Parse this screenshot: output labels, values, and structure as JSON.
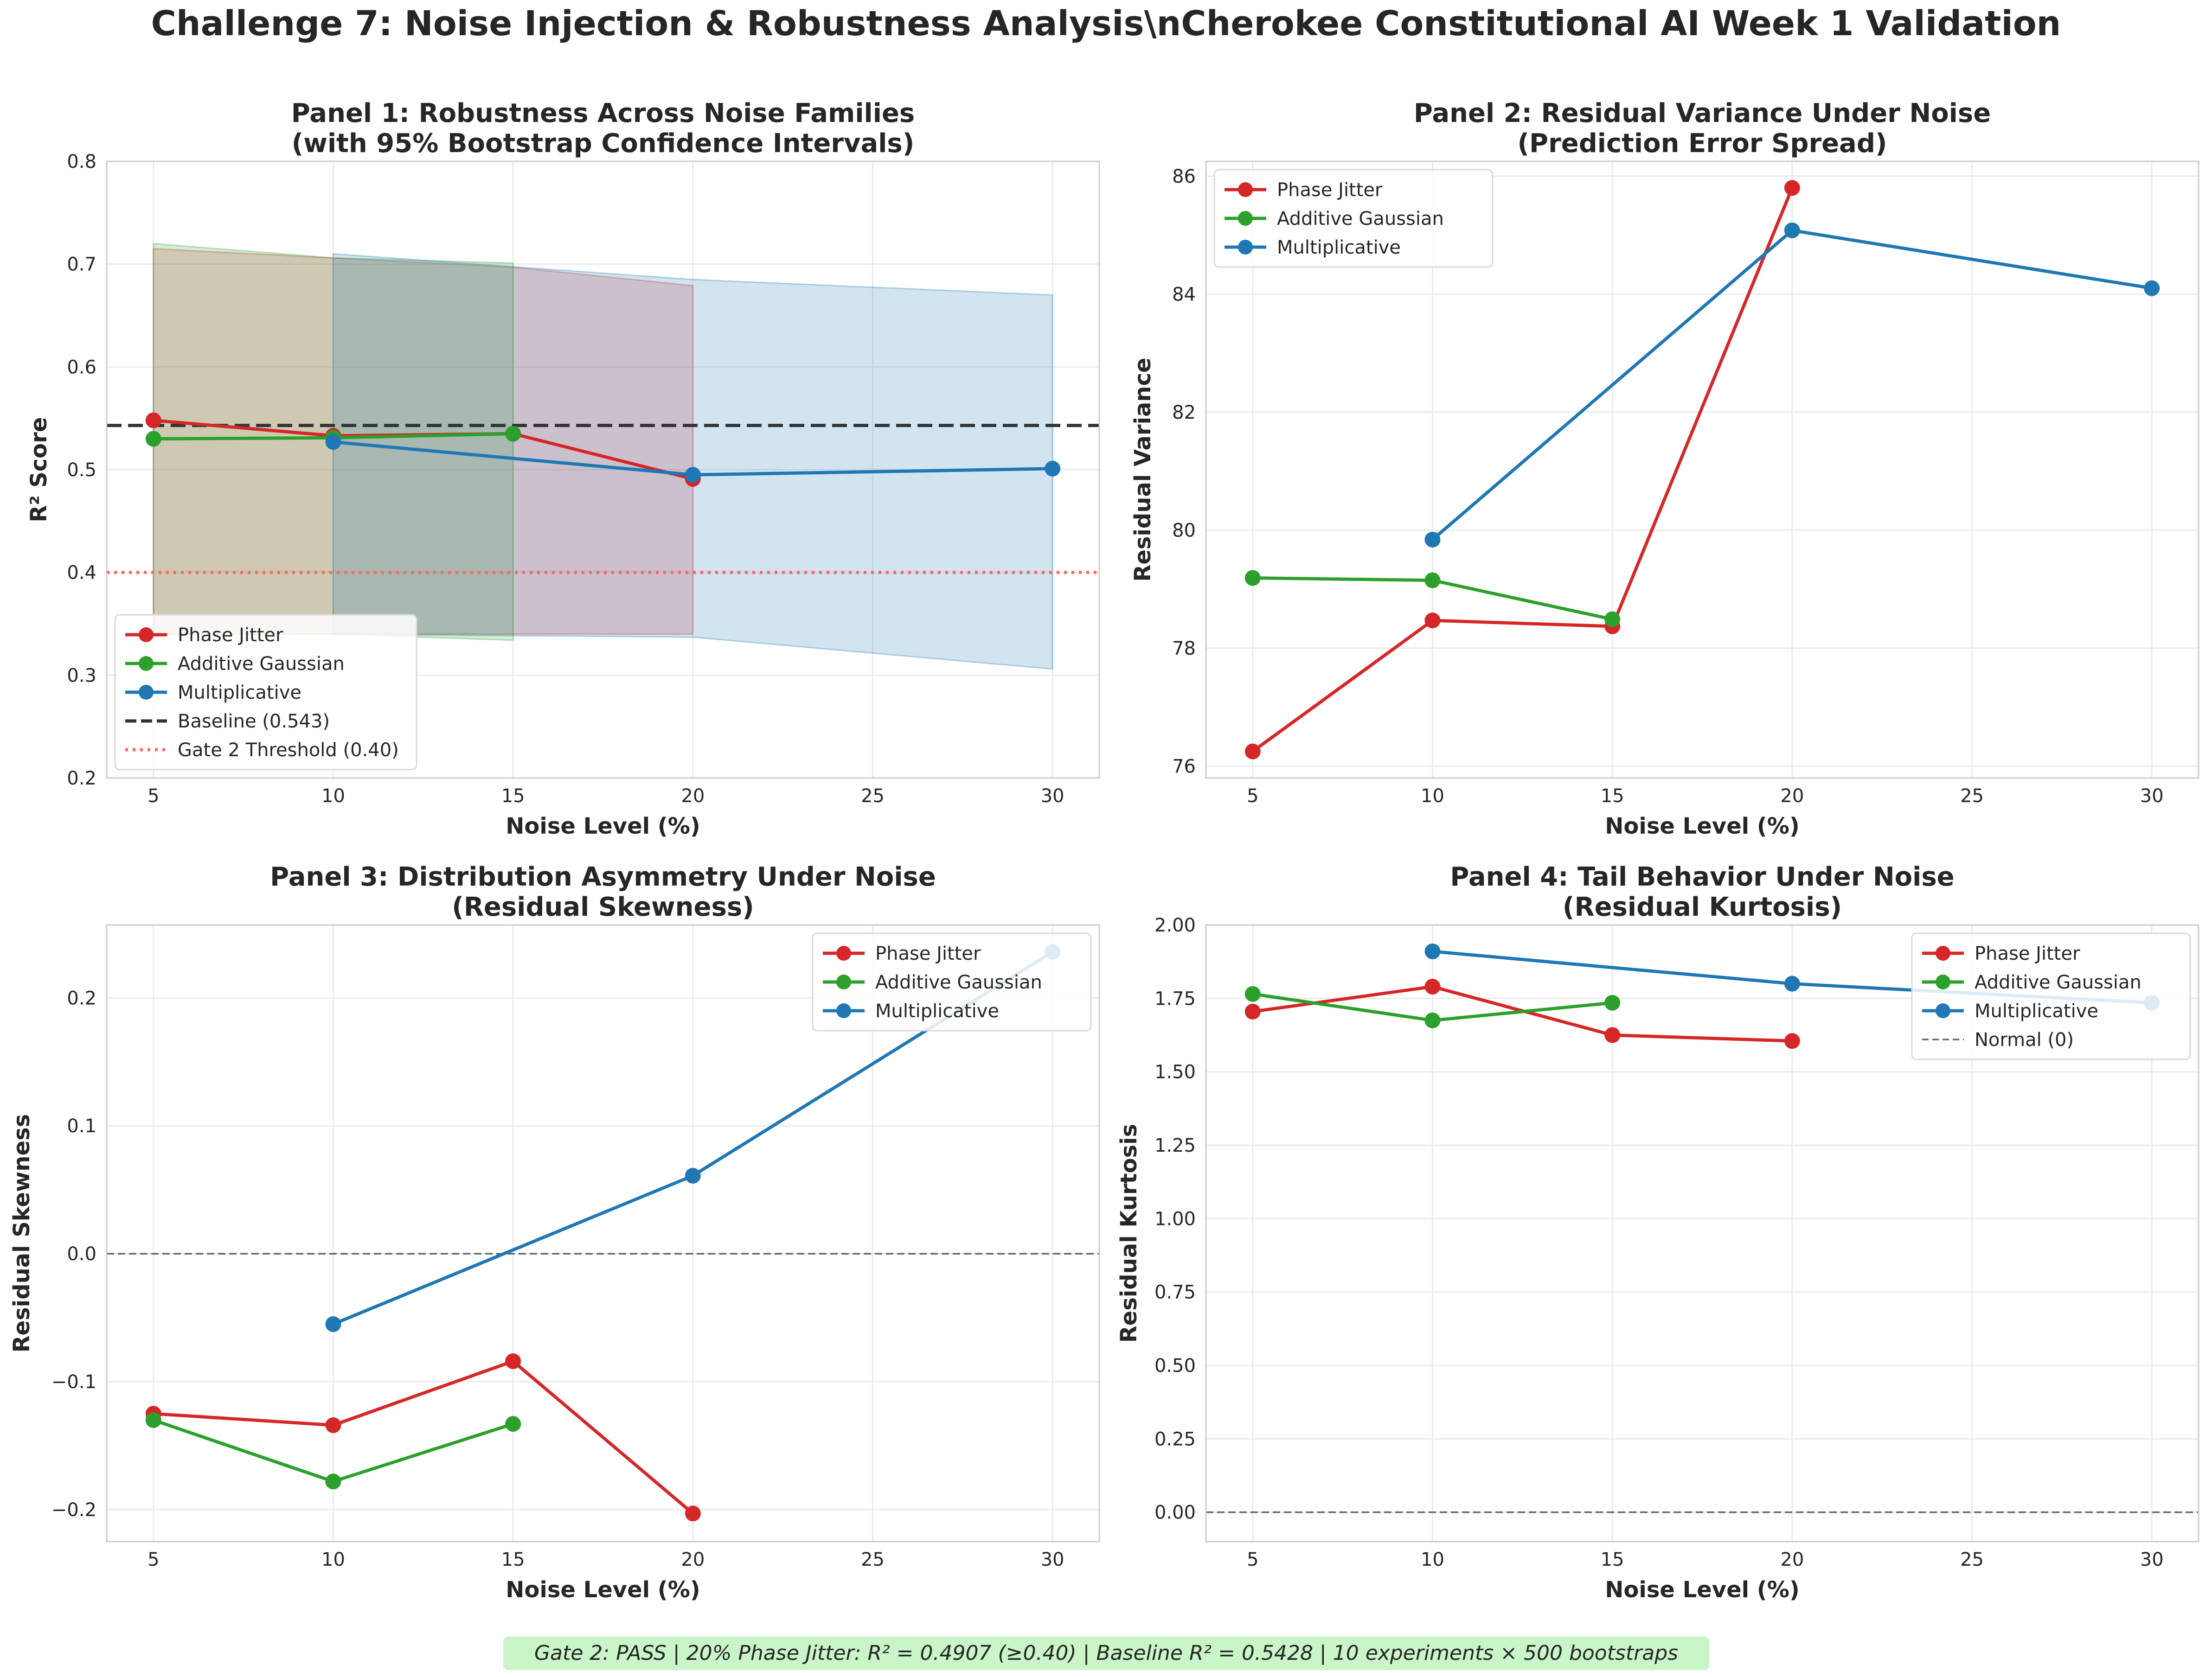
{
  "figure_title": "Challenge 7: Noise Injection & Robustness Analysis\\nCherokee Constitutional AI Week 1 Validation",
  "footer_note": "Gate 2: PASS | 20% Phase Jitter: R² = 0.4907 (≥0.40) | Baseline R² = 0.5428 | 10 experiments × 500 bootstraps",
  "colors": {
    "phase_jitter": "#d62728",
    "additive_gaussian": "#2ca02c",
    "multiplicative": "#1f77b4"
  },
  "chart_data": [
    {
      "type": "line",
      "title": "Panel 1: Robustness Across Noise Families",
      "subtitle": "(with 95% Bootstrap Confidence Intervals)",
      "xlabel": "Noise Level (%)",
      "ylabel": "R² Score",
      "xlim": [
        3.7,
        31.3
      ],
      "ylim": [
        0.2,
        0.8
      ],
      "xticks": [
        5,
        10,
        15,
        20,
        25,
        30
      ],
      "xtick_labels": [
        "5",
        "10",
        "15",
        "20",
        "25",
        "30"
      ],
      "yticks": [
        0.2,
        0.3,
        0.4,
        0.5,
        0.6,
        0.7,
        0.8
      ],
      "ytick_labels": [
        "0.2",
        "0.3",
        "0.4",
        "0.5",
        "0.6",
        "0.7",
        "0.8"
      ],
      "grid": true,
      "legend_position": "lower-left",
      "series": [
        {
          "name": "Phase Jitter",
          "color": "#d62728",
          "x": [
            5,
            10,
            15,
            20
          ],
          "y": [
            0.548,
            0.533,
            0.535,
            0.491
          ],
          "ci_low": [
            0.34,
            0.34,
            0.34,
            0.34
          ],
          "ci_high": [
            0.715,
            0.706,
            0.697,
            0.679
          ]
        },
        {
          "name": "Additive Gaussian",
          "color": "#2ca02c",
          "x": [
            5,
            10,
            15
          ],
          "y": [
            0.53,
            0.531,
            0.535
          ],
          "ci_low": [
            0.34,
            0.34,
            0.334
          ],
          "ci_high": [
            0.72,
            0.706,
            0.701
          ]
        },
        {
          "name": "Multiplicative",
          "color": "#1f77b4",
          "x": [
            10,
            20,
            30
          ],
          "y": [
            0.527,
            0.495,
            0.501
          ],
          "ci_low": [
            0.34,
            0.337,
            0.306
          ],
          "ci_high": [
            0.71,
            0.685,
            0.67
          ]
        }
      ],
      "reference_lines": [
        {
          "name": "Baseline (0.543)",
          "y": 0.543,
          "color": "#333333",
          "style": "dashed"
        },
        {
          "name": "Gate 2 Threshold (0.40)",
          "y": 0.4,
          "color": "#ff6666",
          "style": "dotted"
        }
      ]
    },
    {
      "type": "line",
      "title": "Panel 2: Residual Variance Under Noise",
      "subtitle": "(Prediction Error Spread)",
      "xlabel": "Noise Level (%)",
      "ylabel": "Residual Variance",
      "xlim": [
        3.7,
        31.3
      ],
      "ylim": [
        75.8,
        86.25
      ],
      "xticks": [
        5,
        10,
        15,
        20,
        25,
        30
      ],
      "xtick_labels": [
        "5",
        "10",
        "15",
        "20",
        "25",
        "30"
      ],
      "yticks": [
        76,
        78,
        80,
        82,
        84,
        86
      ],
      "ytick_labels": [
        "76",
        "78",
        "80",
        "82",
        "84",
        "86"
      ],
      "grid": true,
      "legend_position": "upper-left",
      "series": [
        {
          "name": "Phase Jitter",
          "color": "#d62728",
          "x": [
            5,
            10,
            15,
            20
          ],
          "y": [
            76.25,
            78.47,
            78.37,
            85.8
          ]
        },
        {
          "name": "Additive Gaussian",
          "color": "#2ca02c",
          "x": [
            5,
            10,
            15
          ],
          "y": [
            79.19,
            79.15,
            78.49
          ]
        },
        {
          "name": "Multiplicative",
          "color": "#1f77b4",
          "x": [
            10,
            20,
            30
          ],
          "y": [
            79.84,
            85.08,
            84.1
          ]
        }
      ],
      "reference_lines": []
    },
    {
      "type": "line",
      "title": "Panel 3: Distribution Asymmetry Under Noise",
      "subtitle": "(Residual Skewness)",
      "xlabel": "Noise Level (%)",
      "ylabel": "Residual Skewness",
      "xlim": [
        3.7,
        31.3
      ],
      "ylim": [
        -0.225,
        0.257
      ],
      "xticks": [
        5,
        10,
        15,
        20,
        25,
        30
      ],
      "xtick_labels": [
        "5",
        "10",
        "15",
        "20",
        "25",
        "30"
      ],
      "yticks": [
        -0.2,
        -0.1,
        0.0,
        0.1,
        0.2
      ],
      "ytick_labels": [
        "−0.2",
        "−0.1",
        "0.0",
        "0.1",
        "0.2"
      ],
      "grid": true,
      "legend_position": "upper-right",
      "series": [
        {
          "name": "Phase Jitter",
          "color": "#d62728",
          "x": [
            5,
            10,
            15,
            20
          ],
          "y": [
            -0.125,
            -0.134,
            -0.084,
            -0.203
          ]
        },
        {
          "name": "Additive Gaussian",
          "color": "#2ca02c",
          "x": [
            5,
            10,
            15
          ],
          "y": [
            -0.13,
            -0.178,
            -0.133
          ]
        },
        {
          "name": "Multiplicative",
          "color": "#1f77b4",
          "x": [
            10,
            20,
            30
          ],
          "y": [
            -0.055,
            0.061,
            0.236
          ]
        }
      ],
      "reference_lines": [
        {
          "name": "",
          "y": 0.0,
          "color": "#666666",
          "style": "dashed"
        }
      ]
    },
    {
      "type": "line",
      "title": "Panel 4: Tail Behavior Under Noise",
      "subtitle": "(Residual Kurtosis)",
      "xlabel": "Noise Level (%)",
      "ylabel": "Residual Kurtosis",
      "xlim": [
        3.7,
        31.3
      ],
      "ylim": [
        -0.1,
        2.0
      ],
      "xticks": [
        5,
        10,
        15,
        20,
        25,
        30
      ],
      "xtick_labels": [
        "5",
        "10",
        "15",
        "20",
        "25",
        "30"
      ],
      "yticks": [
        0.0,
        0.25,
        0.5,
        0.75,
        1.0,
        1.25,
        1.5,
        1.75,
        2.0
      ],
      "ytick_labels": [
        "0.00",
        "0.25",
        "0.50",
        "0.75",
        "1.00",
        "1.25",
        "1.50",
        "1.75",
        "2.00"
      ],
      "grid": true,
      "legend_position": "upper-right",
      "series": [
        {
          "name": "Phase Jitter",
          "color": "#d62728",
          "x": [
            5,
            10,
            15,
            20
          ],
          "y": [
            1.705,
            1.79,
            1.625,
            1.605
          ]
        },
        {
          "name": "Additive Gaussian",
          "color": "#2ca02c",
          "x": [
            5,
            10,
            15
          ],
          "y": [
            1.765,
            1.675,
            1.735
          ]
        },
        {
          "name": "Multiplicative",
          "color": "#1f77b4",
          "x": [
            10,
            20,
            30
          ],
          "y": [
            1.91,
            1.8,
            1.735
          ]
        }
      ],
      "reference_lines": [
        {
          "name": "Normal (0)",
          "y": 0.0,
          "color": "#666666",
          "style": "dashed"
        }
      ]
    }
  ]
}
